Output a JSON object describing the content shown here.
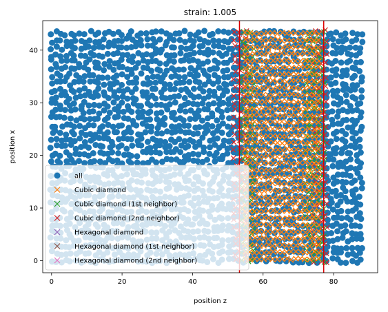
{
  "chart_data": {
    "type": "scatter",
    "title": "strain: 1.005",
    "xlabel": "position z",
    "ylabel": "position x",
    "xlim": [
      -2.5,
      92.5
    ],
    "ylim": [
      -2.3,
      45.6
    ],
    "xticks": [
      0,
      20,
      40,
      60,
      80
    ],
    "yticks": [
      0,
      10,
      20,
      30,
      40
    ],
    "legend_placement": "lower-left",
    "series": [
      {
        "name": "all",
        "marker": "o",
        "color": "#1f77b4",
        "z_range": [
          0,
          88
        ],
        "x_range": [
          0,
          43.5
        ]
      },
      {
        "name": "Cubic diamond",
        "marker": "x",
        "color": "#ff7f0e",
        "z_range": [
          55,
          76
        ],
        "x_range": [
          0,
          43.5
        ]
      },
      {
        "name": "Cubic diamond (1st neighbor)",
        "marker": "x",
        "color": "#2ca02c",
        "z_range": [
          54,
          77
        ],
        "x_range": [
          0,
          43.5
        ]
      },
      {
        "name": "Cubic diamond (2nd neighbor)",
        "marker": "x",
        "color": "#d62728",
        "z_range": [
          52,
          79
        ],
        "x_range": [
          0,
          43.5
        ]
      },
      {
        "name": "Hexagonal diamond",
        "marker": "x",
        "color": "#9467bd"
      },
      {
        "name": "Hexagonal diamond (1st neighbor)",
        "marker": "x",
        "color": "#8c564b"
      },
      {
        "name": "Hexagonal diamond (2nd neighbor)",
        "marker": "x",
        "color": "#e377c2"
      }
    ],
    "vlines": [
      {
        "x": 53.3,
        "color": "#dd0000"
      },
      {
        "x": 77.2,
        "color": "#dd0000"
      }
    ]
  }
}
